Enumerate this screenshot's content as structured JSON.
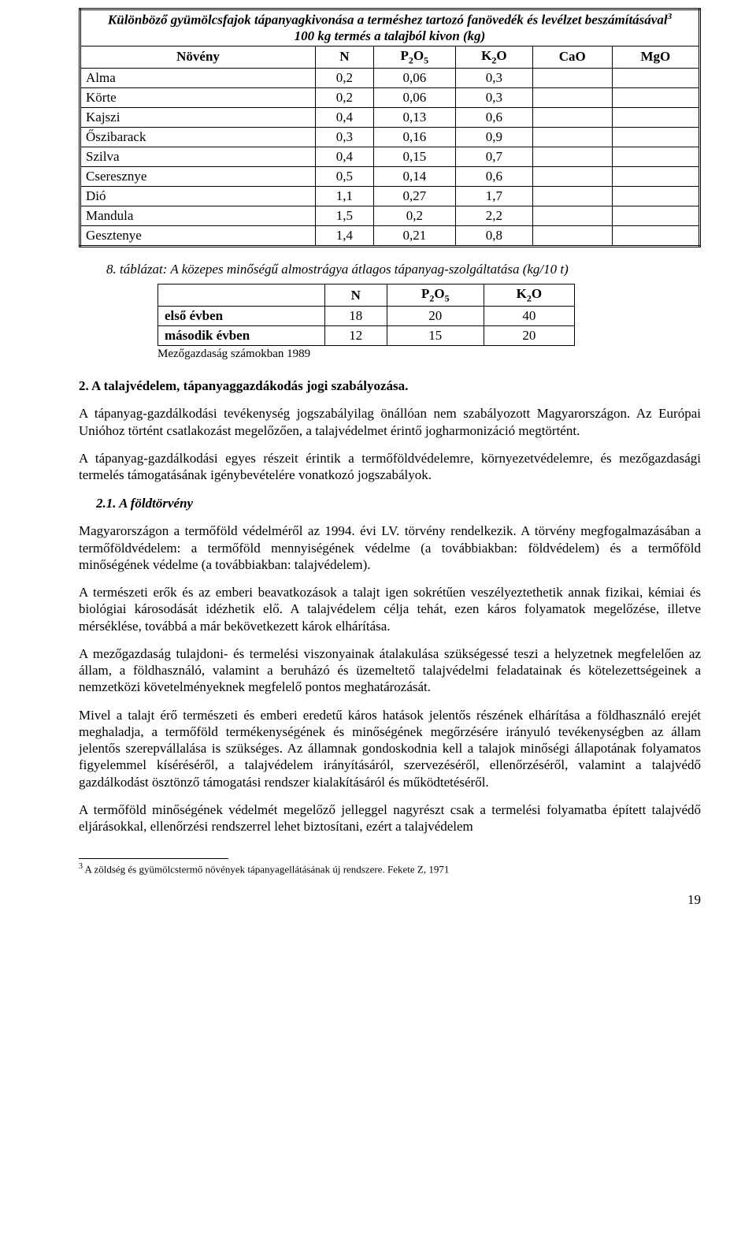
{
  "table1": {
    "title_line1": "Különböző gyümölcsfajok tápanyagkivonása a terméshez tartozó fanövedék és levélzet beszámításával",
    "title_sup": "3",
    "title_line2": "100 kg termés a talajból kivon (kg)",
    "headers": [
      "Növény",
      "N",
      "P₂O₅",
      "K₂O",
      "CaO",
      "MgO"
    ],
    "rows": [
      [
        "Alma",
        "0,2",
        "0,06",
        "0,3",
        "",
        ""
      ],
      [
        "Körte",
        "0,2",
        "0,06",
        "0,3",
        "",
        ""
      ],
      [
        "Kajszi",
        "0,4",
        "0,13",
        "0,6",
        "",
        ""
      ],
      [
        "Őszibarack",
        "0,3",
        "0,16",
        "0,9",
        "",
        ""
      ],
      [
        "Szilva",
        "0,4",
        "0,15",
        "0,7",
        "",
        ""
      ],
      [
        "Cseresznye",
        "0,5",
        "0,14",
        "0,6",
        "",
        ""
      ],
      [
        "Dió",
        "1,1",
        "0,27",
        "1,7",
        "",
        ""
      ],
      [
        "Mandula",
        "1,5",
        "0,2",
        "2,2",
        "",
        ""
      ],
      [
        "Gesztenye",
        "1,4",
        "0,21",
        "0,8",
        "",
        ""
      ]
    ]
  },
  "caption8": "8. táblázat: A közepes minőségű almostrágya átlagos tápanyag-szolgáltatása (kg/10 t)",
  "table2": {
    "headers": [
      "",
      "N",
      "P₂O₅",
      "K₂O"
    ],
    "rows": [
      [
        "első évben",
        "18",
        "20",
        "40"
      ],
      [
        "második évben",
        "12",
        "15",
        "20"
      ]
    ],
    "source": "Mezőgazdaság számokban 1989"
  },
  "section2_heading": "2. A talajvédelem, tápanyaggazdákodás jogi szabályozása.",
  "p1": "A tápanyag-gazdálkodási tevékenység jogszabályilag önállóan nem szabályozott Magyarországon. Az Európai Unióhoz történt csatlakozást megelőzően, a talajvédelmet érintő jogharmonizáció megtörtént.",
  "p2": "A tápanyag-gazdálkodási egyes részeit érintik a termőföldvédelemre, környezetvédelemre, és mezőgazdasági termelés támogatásának igénybevételére vonatkozó jogszabályok.",
  "subsec21": "2.1. A földtörvény",
  "p3": "Magyarországon a termőföld védelméről az 1994. évi LV. törvény rendelkezik. A törvény megfogalmazásában a termőföldvédelem: a termőföld mennyiségének védelme (a továbbiakban: földvédelem) és a termőföld minőségének védelme (a továbbiakban: talajvédelem).",
  "p4a": "A természeti erők és az emberi beavatkozások a talajt igen sokrétűen veszélyeztethetik annak ",
  "p4b": "fizikai, kémiai és biológiai károsodását idézhetik elő. A talajvédelem célja tehát, ezen káros folyamatok megelőzése, illetve mérséklése, továbbá a már bekövetkezett károk elhárítása.",
  "p5": "A mezőgazdaság tulajdoni- és termelési viszonyainak átalakulása szükségessé teszi a helyzetnek megfelelően az állam, a földhasználó, valamint a beruházó és üzemeltető talajvédelmi feladatainak és kötelezettségeinek a nemzetközi követelményeknek megfelelő pontos meghatározását.",
  "p6": "Mivel a talajt érő természeti és emberi eredetű káros hatások jelentős részének elhárítása a földhasználó erejét meghaladja, a termőföld termékenységének és minőségének megőrzésére irányuló tevékenységben az állam jelentős szerepvállalása is szükséges. Az államnak gondoskodnia kell a talajok minőségi állapotának folyamatos figyelemmel kíséréséről, a talajvédelem irányításáról, szervezéséről, ellenőrzéséről, valamint a talajvédő gazdálkodást ösztönző támogatási rendszer kialakításáról és működtetéséről.",
  "p7": "A termőföld minőségének védelmét megelőző jelleggel nagyrészt csak a termelési folyamatba épített talajvédő eljárásokkal, ellenőrzési rendszerrel lehet biztosítani, ezért a talajvédelem",
  "footnote": {
    "num": "3",
    "text": " A zöldség és gyümölcstermő növények tápanyagellátásának új rendszere. Fekete Z, 1971"
  },
  "pagenum": "19"
}
